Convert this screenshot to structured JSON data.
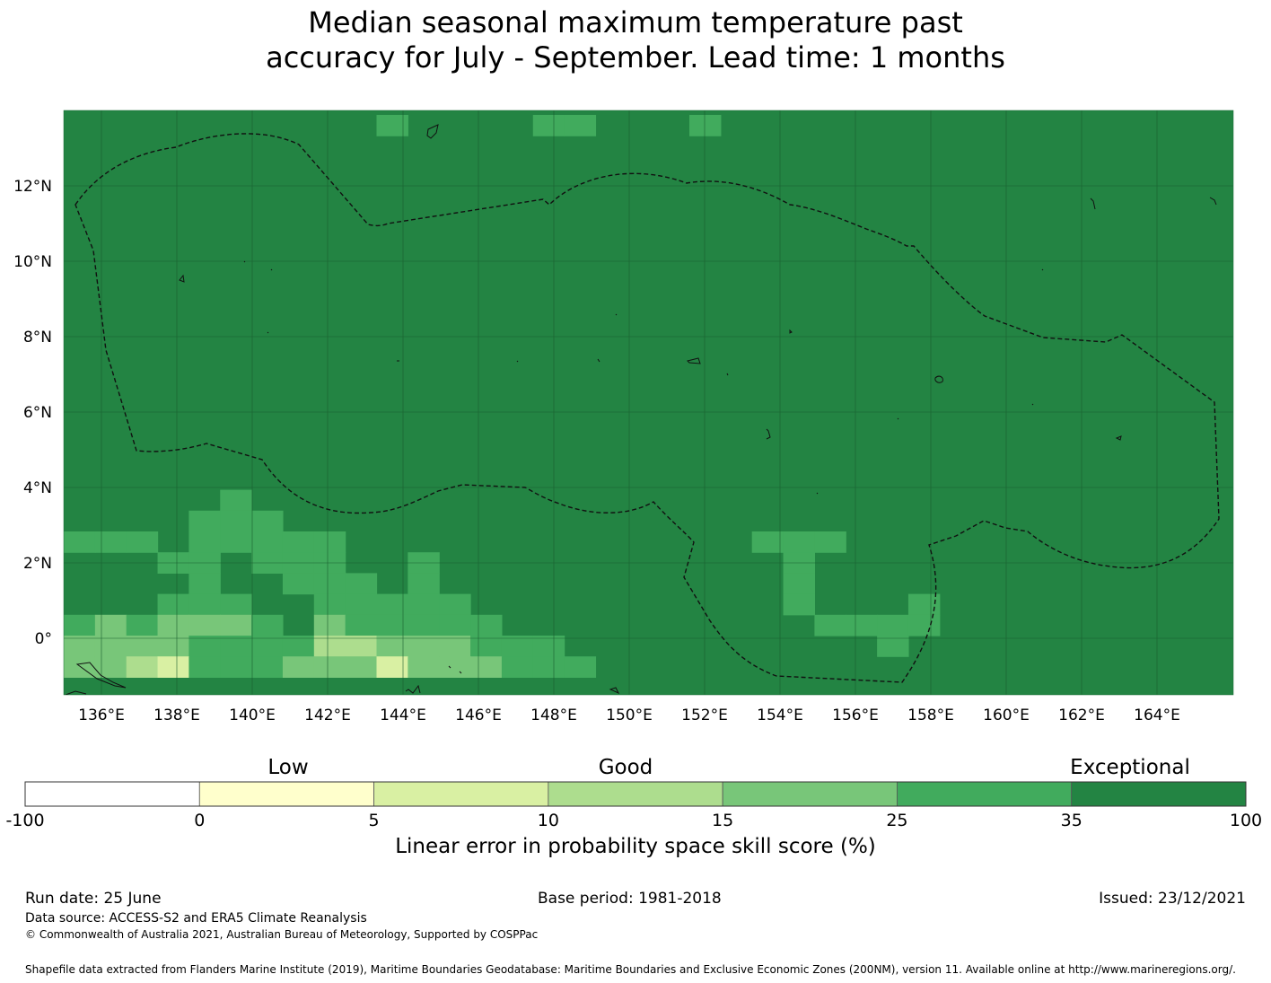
{
  "title": {
    "line1": "Median seasonal maximum temperature past",
    "line2": "accuracy for July - September. Lead time: 1 months"
  },
  "map": {
    "lon_ticks": [
      "136°E",
      "138°E",
      "140°E",
      "142°E",
      "144°E",
      "146°E",
      "148°E",
      "150°E",
      "152°E",
      "154°E",
      "156°E",
      "158°E",
      "160°E",
      "162°E",
      "164°E"
    ],
    "lat_ticks": [
      "12°N",
      "10°N",
      "8°N",
      "6°N",
      "4°N",
      "2°N",
      "0°"
    ],
    "background_color": "#238443",
    "region": "Federated States of Micronesia EEZ",
    "cells": [
      {
        "c": 10,
        "r": 0,
        "col": "#41ab5d"
      },
      {
        "c": 15,
        "r": 0,
        "col": "#41ab5d"
      },
      {
        "c": 16,
        "r": 0,
        "col": "#41ab5d"
      },
      {
        "c": 20,
        "r": 0,
        "col": "#41ab5d"
      },
      {
        "c": 5,
        "r": 18,
        "col": "#41ab5d"
      },
      {
        "c": 4,
        "r": 19,
        "col": "#41ab5d"
      },
      {
        "c": 5,
        "r": 19,
        "col": "#41ab5d"
      },
      {
        "c": 6,
        "r": 19,
        "col": "#41ab5d"
      },
      {
        "c": 0,
        "r": 20,
        "col": "#41ab5d"
      },
      {
        "c": 1,
        "r": 20,
        "col": "#41ab5d"
      },
      {
        "c": 2,
        "r": 20,
        "col": "#41ab5d"
      },
      {
        "c": 4,
        "r": 20,
        "col": "#41ab5d"
      },
      {
        "c": 5,
        "r": 20,
        "col": "#41ab5d"
      },
      {
        "c": 6,
        "r": 20,
        "col": "#41ab5d"
      },
      {
        "c": 7,
        "r": 20,
        "col": "#41ab5d"
      },
      {
        "c": 8,
        "r": 20,
        "col": "#41ab5d"
      },
      {
        "c": 22,
        "r": 20,
        "col": "#41ab5d"
      },
      {
        "c": 23,
        "r": 20,
        "col": "#41ab5d"
      },
      {
        "c": 24,
        "r": 20,
        "col": "#41ab5d"
      },
      {
        "c": 3,
        "r": 21,
        "col": "#41ab5d"
      },
      {
        "c": 4,
        "r": 21,
        "col": "#41ab5d"
      },
      {
        "c": 6,
        "r": 21,
        "col": "#41ab5d"
      },
      {
        "c": 7,
        "r": 21,
        "col": "#41ab5d"
      },
      {
        "c": 8,
        "r": 21,
        "col": "#41ab5d"
      },
      {
        "c": 11,
        "r": 21,
        "col": "#41ab5d"
      },
      {
        "c": 23,
        "r": 21,
        "col": "#41ab5d"
      },
      {
        "c": 4,
        "r": 22,
        "col": "#41ab5d"
      },
      {
        "c": 7,
        "r": 22,
        "col": "#41ab5d"
      },
      {
        "c": 8,
        "r": 22,
        "col": "#41ab5d"
      },
      {
        "c": 9,
        "r": 22,
        "col": "#41ab5d"
      },
      {
        "c": 11,
        "r": 22,
        "col": "#41ab5d"
      },
      {
        "c": 23,
        "r": 22,
        "col": "#41ab5d"
      },
      {
        "c": 3,
        "r": 23,
        "col": "#41ab5d"
      },
      {
        "c": 4,
        "r": 23,
        "col": "#41ab5d"
      },
      {
        "c": 5,
        "r": 23,
        "col": "#41ab5d"
      },
      {
        "c": 8,
        "r": 23,
        "col": "#41ab5d"
      },
      {
        "c": 9,
        "r": 23,
        "col": "#41ab5d"
      },
      {
        "c": 10,
        "r": 23,
        "col": "#41ab5d"
      },
      {
        "c": 11,
        "r": 23,
        "col": "#41ab5d"
      },
      {
        "c": 12,
        "r": 23,
        "col": "#41ab5d"
      },
      {
        "c": 23,
        "r": 23,
        "col": "#41ab5d"
      },
      {
        "c": 27,
        "r": 23,
        "col": "#41ab5d"
      },
      {
        "c": 0,
        "r": 24,
        "col": "#41ab5d"
      },
      {
        "c": 1,
        "r": 24,
        "col": "#78c679"
      },
      {
        "c": 2,
        "r": 24,
        "col": "#41ab5d"
      },
      {
        "c": 3,
        "r": 24,
        "col": "#78c679"
      },
      {
        "c": 4,
        "r": 24,
        "col": "#78c679"
      },
      {
        "c": 5,
        "r": 24,
        "col": "#78c679"
      },
      {
        "c": 6,
        "r": 24,
        "col": "#41ab5d"
      },
      {
        "c": 8,
        "r": 24,
        "col": "#78c679"
      },
      {
        "c": 9,
        "r": 24,
        "col": "#41ab5d"
      },
      {
        "c": 10,
        "r": 24,
        "col": "#41ab5d"
      },
      {
        "c": 11,
        "r": 24,
        "col": "#41ab5d"
      },
      {
        "c": 12,
        "r": 24,
        "col": "#41ab5d"
      },
      {
        "c": 13,
        "r": 24,
        "col": "#41ab5d"
      },
      {
        "c": 24,
        "r": 24,
        "col": "#41ab5d"
      },
      {
        "c": 25,
        "r": 24,
        "col": "#41ab5d"
      },
      {
        "c": 26,
        "r": 24,
        "col": "#41ab5d"
      },
      {
        "c": 27,
        "r": 24,
        "col": "#41ab5d"
      },
      {
        "c": 0,
        "r": 25,
        "col": "#78c679"
      },
      {
        "c": 1,
        "r": 25,
        "col": "#78c679"
      },
      {
        "c": 2,
        "r": 25,
        "col": "#78c679"
      },
      {
        "c": 3,
        "r": 25,
        "col": "#78c679"
      },
      {
        "c": 4,
        "r": 25,
        "col": "#41ab5d"
      },
      {
        "c": 5,
        "r": 25,
        "col": "#41ab5d"
      },
      {
        "c": 6,
        "r": 25,
        "col": "#41ab5d"
      },
      {
        "c": 7,
        "r": 25,
        "col": "#41ab5d"
      },
      {
        "c": 8,
        "r": 25,
        "col": "#addd8e"
      },
      {
        "c": 9,
        "r": 25,
        "col": "#addd8e"
      },
      {
        "c": 10,
        "r": 25,
        "col": "#78c679"
      },
      {
        "c": 11,
        "r": 25,
        "col": "#78c679"
      },
      {
        "c": 12,
        "r": 25,
        "col": "#78c679"
      },
      {
        "c": 13,
        "r": 25,
        "col": "#41ab5d"
      },
      {
        "c": 14,
        "r": 25,
        "col": "#41ab5d"
      },
      {
        "c": 15,
        "r": 25,
        "col": "#41ab5d"
      },
      {
        "c": 26,
        "r": 25,
        "col": "#41ab5d"
      },
      {
        "c": 0,
        "r": 26,
        "col": "#78c679"
      },
      {
        "c": 1,
        "r": 26,
        "col": "#78c679"
      },
      {
        "c": 2,
        "r": 26,
        "col": "#addd8e"
      },
      {
        "c": 3,
        "r": 26,
        "col": "#d9f0a3"
      },
      {
        "c": 4,
        "r": 26,
        "col": "#41ab5d"
      },
      {
        "c": 5,
        "r": 26,
        "col": "#41ab5d"
      },
      {
        "c": 6,
        "r": 26,
        "col": "#41ab5d"
      },
      {
        "c": 7,
        "r": 26,
        "col": "#78c679"
      },
      {
        "c": 8,
        "r": 26,
        "col": "#78c679"
      },
      {
        "c": 9,
        "r": 26,
        "col": "#78c679"
      },
      {
        "c": 10,
        "r": 26,
        "col": "#d9f0a3"
      },
      {
        "c": 11,
        "r": 26,
        "col": "#78c679"
      },
      {
        "c": 12,
        "r": 26,
        "col": "#78c679"
      },
      {
        "c": 13,
        "r": 26,
        "col": "#78c679"
      },
      {
        "c": 14,
        "r": 26,
        "col": "#41ab5d"
      },
      {
        "c": 15,
        "r": 26,
        "col": "#41ab5d"
      },
      {
        "c": 16,
        "r": 26,
        "col": "#41ab5d"
      }
    ]
  },
  "colorbar": {
    "header_low": "Low",
    "header_good": "Good",
    "header_exceptional": "Exceptional",
    "colors": [
      "#ffffff",
      "#ffffcc",
      "#d9f0a3",
      "#addd8e",
      "#78c679",
      "#41ab5d",
      "#238443"
    ],
    "ticks": [
      "-100",
      "0",
      "5",
      "10",
      "15",
      "25",
      "35",
      "100"
    ],
    "label": "Linear error in probability space skill score (%)"
  },
  "footer": {
    "run_date": "Run date: 25 June",
    "base_period": "Base period: 1981-2018",
    "issued": "Issued: 23/12/2021",
    "data_source": "Data source: ACCESS-S2 and ERA5 Climate Reanalysis",
    "copyright": "© Commonwealth of Australia 2021, Australian Bureau of Meteorology, Supported by COSPPac",
    "shapefile": "Shapefile data extracted from Flanders Marine Institute (2019), Maritime Boundaries Geodatabase: Maritime Boundaries and Exclusive Economic Zones (200NM), version 11. Available online at http://www.marineregions.org/."
  }
}
